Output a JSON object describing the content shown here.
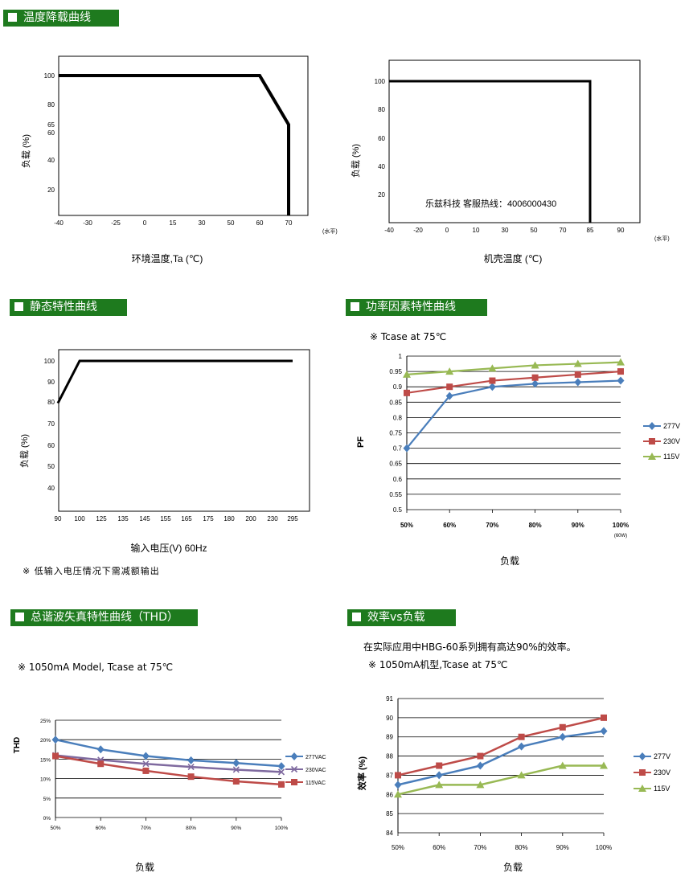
{
  "headers": {
    "derating": "温度降载曲线",
    "static": "静态特性曲线",
    "pf": "功率因素特性曲线",
    "thd": "总谐波失真特性曲线（THD）",
    "eff": "效率vs负载"
  },
  "notes": {
    "static_note": "※ 低输入电压情况下需减额输出",
    "pf_cond": "※ Tcase at 75℃",
    "thd_cond": "※ 1050mA Model, Tcase at 75℃",
    "eff_desc": "在实际应用中HBG-60系列拥有高达90%的效率。",
    "eff_cond": "※ 1050mA机型,Tcase at 75℃"
  },
  "chart_data": [
    {
      "id": "ambient-derating",
      "type": "line",
      "xlabel": "环境温度,Ta (℃)",
      "ylabel": "负载 (%)",
      "x_unit": "(水平)",
      "x_ticks": [
        "-40",
        "-30",
        "-25",
        "0",
        "15",
        "30",
        "50",
        "60",
        "70"
      ],
      "y_ticks": [
        "100",
        "80",
        "65",
        "60",
        "40",
        "20"
      ],
      "series": [
        {
          "x": [
            "-40",
            "60",
            "70",
            "70"
          ],
          "values": [
            100,
            100,
            65,
            0
          ]
        }
      ]
    },
    {
      "id": "case-derating",
      "type": "line",
      "xlabel": "机壳温度 (℃)",
      "ylabel": "负载 (%)",
      "x_unit": "(水平)",
      "x_ticks": [
        "-40",
        "-20",
        "0",
        "10",
        "30",
        "50",
        "70",
        "85",
        "90"
      ],
      "y_ticks": [
        "100",
        "80",
        "60",
        "40",
        "20"
      ],
      "annotation": "乐兹科技 客服热线：4006000430",
      "series": [
        {
          "x": [
            "-40",
            "85",
            "85"
          ],
          "values": [
            100,
            100,
            0
          ]
        }
      ]
    },
    {
      "id": "static",
      "type": "line",
      "xlabel": "输入电压(V) 60Hz",
      "ylabel": "负载 (%)",
      "x_ticks": [
        "90",
        "100",
        "125",
        "135",
        "145",
        "155",
        "165",
        "175",
        "180",
        "200",
        "230",
        "295"
      ],
      "y_ticks": [
        "100",
        "90",
        "80",
        "70",
        "60",
        "50",
        "40"
      ],
      "series": [
        {
          "x": [
            "90",
            "100",
            "295"
          ],
          "values": [
            80,
            100,
            100
          ]
        }
      ]
    },
    {
      "id": "power-factor",
      "type": "line",
      "xlabel": "负载",
      "ylabel": "PF",
      "categories": [
        "50%",
        "60%",
        "70%",
        "80%",
        "90%",
        "100%"
      ],
      "last_sub": "(60W)",
      "y_ticks": [
        "1",
        "0.95",
        "0.9",
        "0.85",
        "0.8",
        "0.75",
        "0.7",
        "0.65",
        "0.6",
        "0.55",
        "0.5"
      ],
      "ylim": [
        0.5,
        1
      ],
      "series": [
        {
          "name": "277V",
          "color": "#4a7ebb",
          "marker": "diamond",
          "values": [
            0.7,
            0.87,
            0.9,
            0.91,
            0.915,
            0.92
          ]
        },
        {
          "name": "230V",
          "color": "#be4b48",
          "marker": "square",
          "values": [
            0.88,
            0.9,
            0.92,
            0.93,
            0.94,
            0.95
          ]
        },
        {
          "name": "115V",
          "color": "#98b954",
          "marker": "triangle",
          "values": [
            0.94,
            0.95,
            0.96,
            0.97,
            0.975,
            0.98
          ]
        }
      ]
    },
    {
      "id": "thd",
      "type": "line",
      "xlabel": "负载",
      "ylabel": "THD",
      "categories": [
        "50%",
        "60%",
        "70%",
        "80%",
        "90%",
        "100%"
      ],
      "y_ticks": [
        "25%",
        "20%",
        "15%",
        "10%",
        "5%",
        "0%"
      ],
      "ylim": [
        0,
        25
      ],
      "series": [
        {
          "name": "277VAC",
          "color": "#4a7ebb",
          "marker": "diamond",
          "values": [
            20,
            17.5,
            15.8,
            14.7,
            14,
            13.2
          ]
        },
        {
          "name": "230VAC",
          "color": "#7f6a9f",
          "marker": "x",
          "values": [
            16,
            14.8,
            13.8,
            13,
            12.3,
            11.7
          ]
        },
        {
          "name": "115VAC",
          "color": "#be4b48",
          "marker": "square",
          "values": [
            15.8,
            13.8,
            12,
            10.5,
            9.3,
            8.5
          ]
        }
      ]
    },
    {
      "id": "efficiency",
      "type": "line",
      "xlabel": "负载",
      "ylabel": "效率 (%)",
      "categories": [
        "50%",
        "60%",
        "70%",
        "80%",
        "90%",
        "100%"
      ],
      "y_ticks": [
        "91",
        "90",
        "89",
        "88",
        "87",
        "86",
        "85",
        "84"
      ],
      "ylim": [
        84,
        91
      ],
      "series": [
        {
          "name": "277V",
          "color": "#4a7ebb",
          "marker": "diamond",
          "values": [
            86.5,
            87,
            87.5,
            88.5,
            89,
            89.3
          ]
        },
        {
          "name": "230V",
          "color": "#be4b48",
          "marker": "square",
          "values": [
            87,
            87.5,
            88,
            89,
            89.5,
            90
          ]
        },
        {
          "name": "115V",
          "color": "#98b954",
          "marker": "triangle",
          "values": [
            86,
            86.5,
            86.5,
            87,
            87.5,
            87.5
          ]
        }
      ]
    }
  ]
}
